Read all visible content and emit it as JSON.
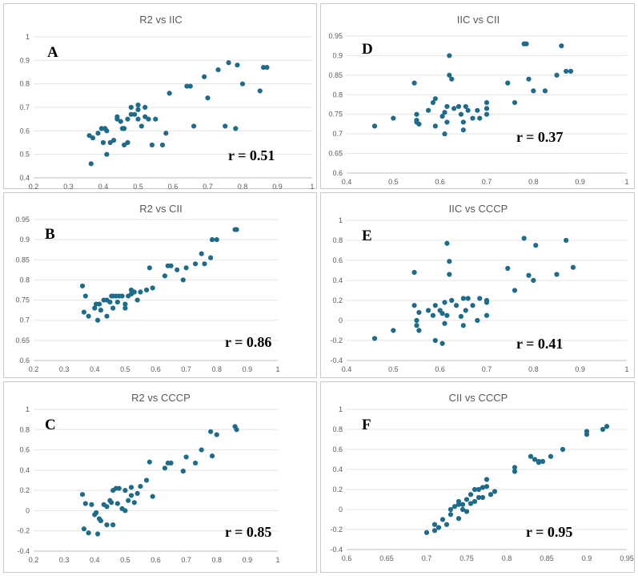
{
  "colors": {
    "marker": "#1f6b8a",
    "grid": "#e3e3e3",
    "text": "#595959"
  },
  "chart_data": [
    {
      "type": "scatter",
      "label": "A",
      "title": "R2 vs IIC",
      "r_text": "r = 0.51",
      "xlim": [
        0.2,
        1
      ],
      "xticks": [
        "0.2",
        "0.3",
        "0.4",
        "0.5",
        "0.6",
        "0.7",
        "0.8",
        "0.9",
        "1"
      ],
      "ylim": [
        0.4,
        1
      ],
      "yticks": [
        "0.4",
        "0.5",
        "0.6",
        "0.7",
        "0.8",
        "0.9",
        "1"
      ],
      "x": [
        0.36,
        0.365,
        0.37,
        0.385,
        0.395,
        0.4,
        0.405,
        0.41,
        0.41,
        0.42,
        0.43,
        0.44,
        0.44,
        0.45,
        0.455,
        0.46,
        0.46,
        0.47,
        0.47,
        0.48,
        0.48,
        0.49,
        0.5,
        0.5,
        0.5,
        0.51,
        0.52,
        0.52,
        0.53,
        0.54,
        0.55,
        0.57,
        0.58,
        0.59,
        0.64,
        0.65,
        0.66,
        0.69,
        0.7,
        0.73,
        0.75,
        0.76,
        0.78,
        0.785,
        0.8,
        0.85,
        0.86,
        0.87
      ],
      "y": [
        0.58,
        0.46,
        0.57,
        0.59,
        0.61,
        0.55,
        0.61,
        0.5,
        0.6,
        0.55,
        0.56,
        0.66,
        0.65,
        0.64,
        0.61,
        0.54,
        0.61,
        0.55,
        0.65,
        0.67,
        0.7,
        0.67,
        0.69,
        0.71,
        0.65,
        0.62,
        0.7,
        0.66,
        0.65,
        0.54,
        0.65,
        0.54,
        0.59,
        0.76,
        0.79,
        0.79,
        0.62,
        0.83,
        0.74,
        0.86,
        0.62,
        0.89,
        0.61,
        0.88,
        0.8,
        0.77,
        0.87,
        0.87
      ]
    },
    {
      "type": "scatter",
      "label": "D",
      "title": "IIC vs CII",
      "r_text": "r = 0.37",
      "xlim": [
        0.4,
        1
      ],
      "xticks": [
        "0.4",
        "0.5",
        "0.6",
        "0.7",
        "0.8",
        "0.9",
        "1"
      ],
      "ylim": [
        0.6,
        0.95
      ],
      "yticks": [
        "0.6",
        "0.65",
        "0.7",
        "0.75",
        "0.8",
        "0.85",
        "0.9",
        "0.95"
      ],
      "x": [
        0.46,
        0.5,
        0.545,
        0.55,
        0.55,
        0.55,
        0.555,
        0.575,
        0.585,
        0.59,
        0.59,
        0.605,
        0.61,
        0.61,
        0.615,
        0.615,
        0.62,
        0.62,
        0.625,
        0.63,
        0.64,
        0.645,
        0.65,
        0.65,
        0.655,
        0.66,
        0.67,
        0.68,
        0.685,
        0.7,
        0.7,
        0.7,
        0.745,
        0.76,
        0.78,
        0.785,
        0.79,
        0.8,
        0.825,
        0.85,
        0.86,
        0.87,
        0.88
      ],
      "y": [
        0.72,
        0.74,
        0.83,
        0.75,
        0.735,
        0.73,
        0.725,
        0.76,
        0.78,
        0.79,
        0.72,
        0.745,
        0.7,
        0.755,
        0.73,
        0.77,
        0.9,
        0.85,
        0.84,
        0.765,
        0.77,
        0.75,
        0.73,
        0.71,
        0.77,
        0.76,
        0.74,
        0.76,
        0.74,
        0.75,
        0.765,
        0.78,
        0.83,
        0.78,
        0.93,
        0.93,
        0.84,
        0.81,
        0.81,
        0.85,
        0.925,
        0.86,
        0.86
      ]
    },
    {
      "type": "scatter",
      "label": "B",
      "title": "R2 vs CII",
      "r_text": "r = 0.86",
      "xlim": [
        0.2,
        1
      ],
      "xticks": [
        "0.2",
        "0.3",
        "0.4",
        "0.5",
        "0.6",
        "0.7",
        "0.8",
        "0.9",
        "1"
      ],
      "ylim": [
        0.6,
        0.95
      ],
      "yticks": [
        "0.6",
        "0.65",
        "0.7",
        "0.75",
        "0.8",
        "0.85",
        "0.9",
        "0.95"
      ],
      "x": [
        0.36,
        0.365,
        0.37,
        0.38,
        0.4,
        0.405,
        0.41,
        0.415,
        0.42,
        0.43,
        0.44,
        0.44,
        0.45,
        0.455,
        0.46,
        0.46,
        0.47,
        0.475,
        0.48,
        0.49,
        0.5,
        0.5,
        0.51,
        0.52,
        0.52,
        0.53,
        0.54,
        0.55,
        0.57,
        0.58,
        0.59,
        0.63,
        0.64,
        0.65,
        0.67,
        0.69,
        0.7,
        0.73,
        0.75,
        0.76,
        0.78,
        0.785,
        0.8,
        0.86,
        0.865
      ],
      "y": [
        0.785,
        0.72,
        0.76,
        0.71,
        0.73,
        0.74,
        0.7,
        0.74,
        0.725,
        0.75,
        0.71,
        0.75,
        0.745,
        0.76,
        0.73,
        0.76,
        0.76,
        0.745,
        0.76,
        0.76,
        0.74,
        0.73,
        0.76,
        0.775,
        0.765,
        0.77,
        0.75,
        0.77,
        0.775,
        0.83,
        0.78,
        0.81,
        0.835,
        0.835,
        0.825,
        0.8,
        0.83,
        0.84,
        0.865,
        0.84,
        0.855,
        0.9,
        0.9,
        0.925,
        0.925
      ]
    },
    {
      "type": "scatter",
      "label": "E",
      "title": "IIC vs CCCP",
      "r_text": "r = 0.41",
      "xlim": [
        0.4,
        1
      ],
      "xticks": [
        "0.4",
        "0.5",
        "0.6",
        "0.7",
        "0.8",
        "0.9",
        "1"
      ],
      "ylim": [
        -0.4,
        1
      ],
      "yticks": [
        "-0.4",
        "-0.2",
        "0",
        "0.2",
        "0.4",
        "0.6",
        "0.8",
        "1"
      ],
      "x": [
        0.46,
        0.5,
        0.545,
        0.545,
        0.55,
        0.55,
        0.555,
        0.555,
        0.575,
        0.585,
        0.59,
        0.59,
        0.6,
        0.605,
        0.605,
        0.61,
        0.61,
        0.615,
        0.615,
        0.62,
        0.62,
        0.625,
        0.635,
        0.645,
        0.65,
        0.65,
        0.655,
        0.66,
        0.67,
        0.68,
        0.685,
        0.7,
        0.7,
        0.7,
        0.745,
        0.76,
        0.78,
        0.79,
        0.8,
        0.805,
        0.85,
        0.87,
        0.885
      ],
      "y": [
        -0.18,
        -0.1,
        0.48,
        0.15,
        0.0,
        -0.05,
        0.08,
        -0.1,
        0.1,
        0.05,
        0.15,
        -0.2,
        0.1,
        -0.23,
        0.07,
        0.18,
        -0.03,
        0.05,
        0.77,
        0.59,
        0.46,
        0.2,
        0.15,
        0.04,
        0.22,
        -0.05,
        0.1,
        0.22,
        0.15,
        0.0,
        0.22,
        0.05,
        0.18,
        0.2,
        0.52,
        0.3,
        0.82,
        0.45,
        0.4,
        0.75,
        0.46,
        0.8,
        0.53
      ]
    },
    {
      "type": "scatter",
      "label": "C",
      "title": "R2 vs CCCP",
      "r_text": "r = 0.85",
      "xlim": [
        0.2,
        1
      ],
      "xticks": [
        "0.2",
        "0.3",
        "0.4",
        "0.5",
        "0.6",
        "0.7",
        "0.8",
        "0.9",
        "1"
      ],
      "ylim": [
        -0.4,
        1
      ],
      "yticks": [
        "-0.4",
        "-0.2",
        "0",
        "0.2",
        "0.4",
        "0.6",
        "0.8",
        "1"
      ],
      "x": [
        0.36,
        0.365,
        0.37,
        0.38,
        0.39,
        0.4,
        0.405,
        0.41,
        0.415,
        0.42,
        0.43,
        0.44,
        0.44,
        0.45,
        0.455,
        0.46,
        0.46,
        0.47,
        0.475,
        0.48,
        0.49,
        0.5,
        0.5,
        0.51,
        0.52,
        0.52,
        0.53,
        0.54,
        0.55,
        0.57,
        0.58,
        0.59,
        0.63,
        0.64,
        0.65,
        0.69,
        0.7,
        0.73,
        0.75,
        0.78,
        0.785,
        0.8,
        0.86,
        0.865
      ],
      "y": [
        0.16,
        -0.18,
        0.07,
        -0.22,
        0.06,
        -0.04,
        -0.02,
        -0.23,
        -0.08,
        -0.1,
        0.06,
        -0.14,
        0.04,
        0.1,
        0.08,
        -0.14,
        0.2,
        0.22,
        0.07,
        0.22,
        0.02,
        0.2,
        0.0,
        0.1,
        0.23,
        0.15,
        0.08,
        0.17,
        0.24,
        0.3,
        0.48,
        0.14,
        0.42,
        0.47,
        0.47,
        0.39,
        0.53,
        0.47,
        0.6,
        0.78,
        0.54,
        0.75,
        0.83,
        0.8
      ]
    },
    {
      "type": "scatter",
      "label": "F",
      "title": "CII vs CCCP",
      "r_text": "r = 0.95",
      "xlim": [
        0.6,
        0.95
      ],
      "xticks": [
        "0.6",
        "0.65",
        "0.7",
        "0.75",
        "0.8",
        "0.85",
        "0.9",
        "0.95"
      ],
      "ylim": [
        -0.4,
        1
      ],
      "yticks": [
        "-0.4",
        "-0.2",
        "0",
        "0.2",
        "0.4",
        "0.6",
        "0.8",
        "1"
      ],
      "x": [
        0.7,
        0.71,
        0.71,
        0.715,
        0.72,
        0.725,
        0.73,
        0.73,
        0.735,
        0.74,
        0.74,
        0.74,
        0.745,
        0.745,
        0.75,
        0.75,
        0.755,
        0.755,
        0.76,
        0.76,
        0.765,
        0.765,
        0.77,
        0.77,
        0.775,
        0.775,
        0.78,
        0.785,
        0.81,
        0.81,
        0.83,
        0.835,
        0.84,
        0.84,
        0.845,
        0.855,
        0.87,
        0.9,
        0.9,
        0.92,
        0.925
      ],
      "y": [
        -0.23,
        -0.21,
        -0.15,
        -0.18,
        -0.1,
        -0.15,
        -0.05,
        0.0,
        0.03,
        0.08,
        0.05,
        -0.09,
        0.0,
        0.05,
        0.1,
        -0.02,
        0.15,
        0.06,
        0.08,
        0.2,
        0.2,
        0.12,
        0.22,
        0.12,
        0.3,
        0.23,
        0.15,
        0.18,
        0.38,
        0.42,
        0.53,
        0.5,
        0.48,
        0.47,
        0.48,
        0.53,
        0.6,
        0.75,
        0.78,
        0.8,
        0.83
      ]
    }
  ]
}
